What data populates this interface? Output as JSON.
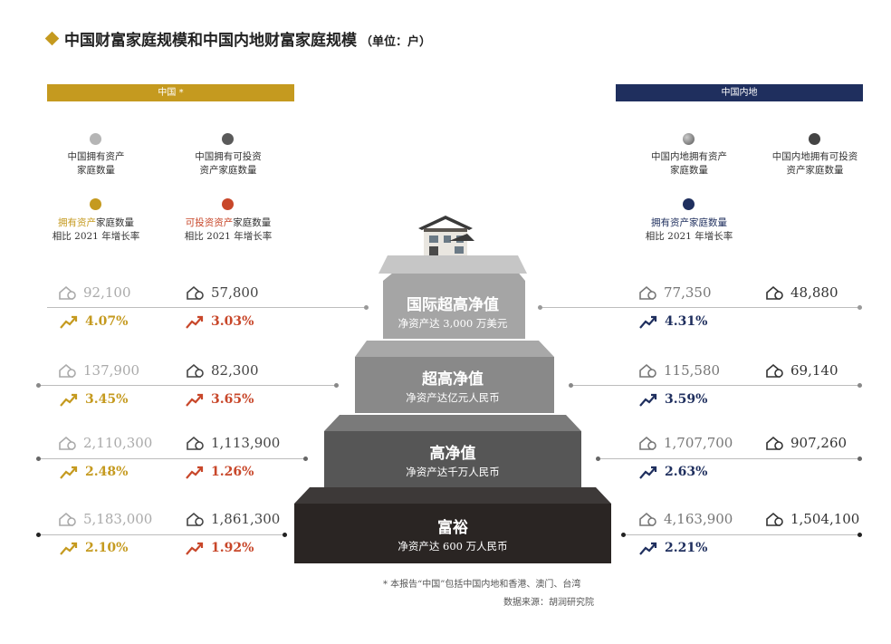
{
  "title": "中国财富家庭规模和中国内地财富家庭规模",
  "unit": "（单位：户）",
  "left_header": "中国 *",
  "right_header": "中国内地",
  "legend": {
    "cn_assets": [
      "中国拥有资产",
      "家庭数量"
    ],
    "cn_invest": [
      "中国拥有可投资",
      "资产家庭数量"
    ],
    "cn_assets_growth": [
      "拥有资产",
      "家庭数量",
      "相比 2021 年增长率"
    ],
    "cn_invest_growth": [
      "可投资资产",
      "家庭数量",
      "相比 2021 年增长率"
    ],
    "ml_assets": [
      "中国内地拥有资产",
      "家庭数量"
    ],
    "ml_invest": [
      "中国内地拥有可投资",
      "资产家庭数量"
    ],
    "ml_growth": [
      "拥有资产家庭数量",
      "相比 2021 年增长率"
    ]
  },
  "colors": {
    "gold": "#c59a1f",
    "red": "#c8472a",
    "navy": "#1f2f5e",
    "light_gray": "#a8a8a8",
    "dark_gray": "#5a5a5a",
    "tier1": "#aaaaaa",
    "tier2": "#8a8a8a",
    "tier3": "#555555",
    "tier4": "#2a2523"
  },
  "tiers": [
    {
      "name": "国际超高净值",
      "desc": "净资产达 3,000 万美元",
      "cn_assets": "92,100",
      "cn_invest": "57,800",
      "cn_assets_growth": "4.07%",
      "cn_invest_growth": "3.03%",
      "ml_assets": "77,350",
      "ml_invest": "48,880",
      "ml_growth": "4.31%"
    },
    {
      "name": "超高净值",
      "desc": "净资产达亿元人民币",
      "cn_assets": "137,900",
      "cn_invest": "82,300",
      "cn_assets_growth": "3.45%",
      "cn_invest_growth": "3.65%",
      "ml_assets": "115,580",
      "ml_invest": "69,140",
      "ml_growth": "3.59%"
    },
    {
      "name": "高净值",
      "desc": "净资产达千万人民币",
      "cn_assets": "2,110,300",
      "cn_invest": "1,113,900",
      "cn_assets_growth": "2.48%",
      "cn_invest_growth": "1.26%",
      "ml_assets": "1,707,700",
      "ml_invest": "907,260",
      "ml_growth": "2.63%"
    },
    {
      "name": "富裕",
      "desc": "净资产达 600 万人民币",
      "cn_assets": "5,183,000",
      "cn_invest": "1,861,300",
      "cn_assets_growth": "2.10%",
      "cn_invest_growth": "1.92%",
      "ml_assets": "4,163,900",
      "ml_invest": "1,504,100",
      "ml_growth": "2.21%"
    }
  ],
  "footnote": "* 本报告“中国”包括中国内地和香港、澳门、台湾",
  "source": "数据来源：胡润研究院"
}
